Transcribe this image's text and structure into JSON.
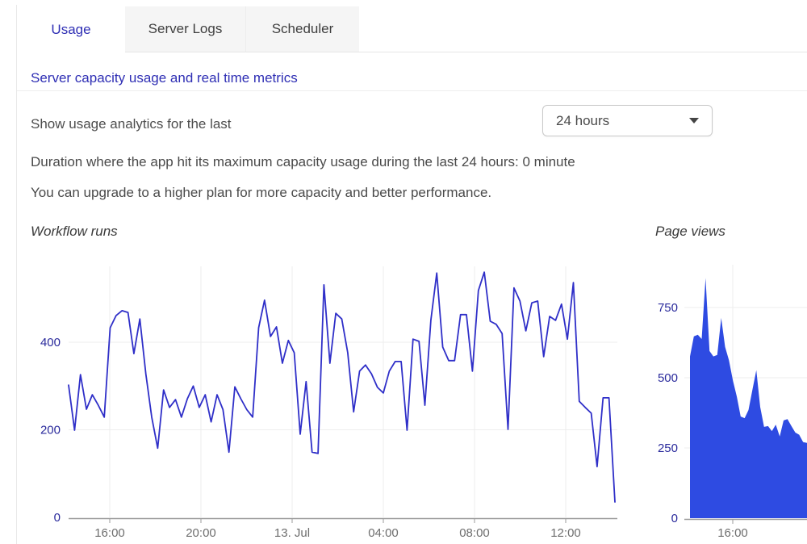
{
  "tabs": [
    {
      "label": "Usage",
      "active": true
    },
    {
      "label": "Server Logs",
      "active": false
    },
    {
      "label": "Scheduler",
      "active": false
    }
  ],
  "header": {
    "metrics_link": "Server capacity usage and real time metrics"
  },
  "controls": {
    "analytics_label": "Show usage analytics for the last",
    "range_dropdown_value": "24 hours"
  },
  "info": {
    "duration_line": "Duration where the app hit its maximum capacity usage during the last 24 hours: 0 minute",
    "upgrade_line": "You can upgrade to a higher plan for more capacity and better performance."
  },
  "colors": {
    "accent_blue": "#2e2eb4",
    "line_stroke": "#2f2fc8",
    "area_fill": "#2e4be2",
    "axis_label_blue": "#2a2a9c",
    "axis_line_gray": "#9b9b9b",
    "grid_gray": "#ededed"
  },
  "chart_data": [
    {
      "type": "line",
      "title": "Workflow runs",
      "ylabel": "",
      "xlabel": "",
      "ylim": [
        0,
        573
      ],
      "grid": true,
      "legend": "none",
      "yticks": [
        0,
        200,
        400
      ],
      "xticks": [
        "16:00",
        "20:00",
        "13. Jul",
        "04:00",
        "08:00",
        "12:00"
      ],
      "values": [
        302,
        199,
        326,
        247,
        280,
        256,
        229,
        433,
        461,
        472,
        468,
        374,
        453,
        328,
        229,
        158,
        291,
        251,
        269,
        229,
        271,
        300,
        251,
        280,
        218,
        280,
        246,
        149,
        298,
        271,
        246,
        229,
        433,
        496,
        413,
        435,
        352,
        404,
        376,
        190,
        310,
        149,
        146,
        531,
        352,
        466,
        453,
        376,
        241,
        334,
        348,
        328,
        297,
        284,
        334,
        356,
        356,
        199,
        407,
        402,
        256,
        450,
        558,
        389,
        358,
        358,
        463,
        463,
        334,
        518,
        560,
        448,
        441,
        420,
        201,
        524,
        494,
        426,
        490,
        494,
        367,
        459,
        450,
        487,
        407,
        536,
        265,
        251,
        238,
        116,
        273,
        273,
        35
      ]
    },
    {
      "type": "area",
      "title": "Page views",
      "ylabel": "",
      "xlabel": "",
      "ylim": [
        0,
        897
      ],
      "grid": true,
      "legend": "none",
      "yticks": [
        0,
        250,
        500,
        750
      ],
      "xticks": [
        "16:00"
      ],
      "values": [
        576,
        647,
        653,
        638,
        855,
        595,
        576,
        581,
        713,
        610,
        562,
        490,
        433,
        362,
        356,
        385,
        456,
        527,
        396,
        325,
        328,
        310,
        333,
        291,
        348,
        353,
        328,
        305,
        297,
        271,
        268
      ]
    }
  ]
}
